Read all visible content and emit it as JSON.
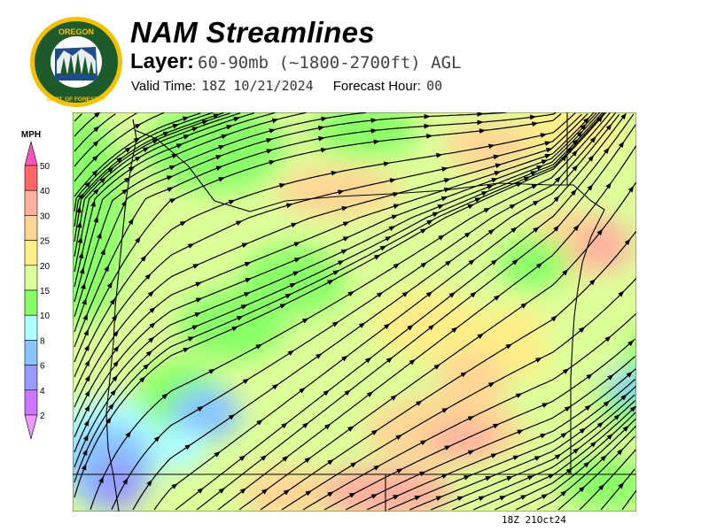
{
  "logo": {
    "top_text": "OREGON",
    "bottom_text": "DEPARTMENT OF FORESTRY"
  },
  "header": {
    "title": "NAM Streamlines",
    "layer_label": "Layer:",
    "layer_value": "60-90mb (~1800-2700ft) AGL",
    "valid_label": "Valid Time:",
    "valid_value": "18Z 10/21/2024",
    "forecast_label": "Forecast Hour:",
    "forecast_value": "00"
  },
  "legend": {
    "unit": "MPH",
    "ticks": [
      "50",
      "40",
      "30",
      "25",
      "20",
      "15",
      "10",
      "8",
      "6",
      "4",
      "2"
    ],
    "colors": {
      "above": "#ff55bb",
      "bins": [
        "#ff6666",
        "#ffb0a0",
        "#ffd595",
        "#ffee88",
        "#ddff99",
        "#88ff66",
        "#b0ffff",
        "#88c4ff",
        "#9999ff",
        "#cc77ff"
      ],
      "below": "#ee99ff"
    }
  },
  "map": {
    "valid_stamp": "18Z 21Oct24",
    "streamline_color": "#000000",
    "boundary_color": "#000000"
  }
}
